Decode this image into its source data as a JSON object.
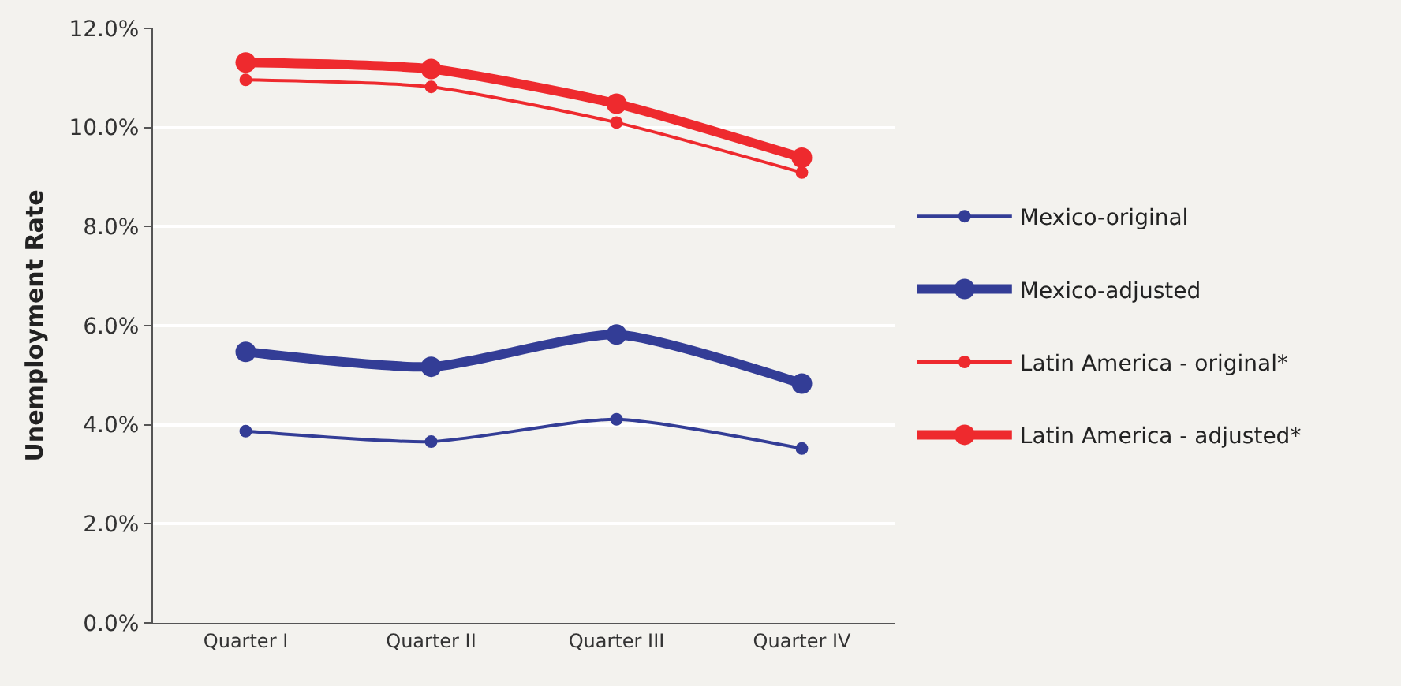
{
  "chart_data": {
    "type": "line",
    "ylabel": "Unemployment Rate",
    "categories": [
      "Quarter I",
      "Quarter II",
      "Quarter III",
      "Quarter IV"
    ],
    "series": [
      {
        "name": "Mexico-original",
        "color": "#333d96",
        "values": [
          3.87,
          3.66,
          4.11,
          3.52
        ]
      },
      {
        "name": "Mexico-adjusted",
        "color": "#333d96",
        "values": [
          5.47,
          5.17,
          5.82,
          4.83
        ]
      },
      {
        "name": "Latin America - original*",
        "color": "#ee2a2e",
        "values": [
          10.96,
          10.82,
          10.1,
          9.09
        ]
      },
      {
        "name": "Latin America - adjusted*",
        "color": "#ee2a2e",
        "values": [
          11.31,
          11.18,
          10.48,
          9.39
        ]
      }
    ],
    "ylim": [
      0,
      12
    ],
    "yticks": [
      {
        "value": 0,
        "label": "0.0%"
      },
      {
        "value": 2,
        "label": "2.0%"
      },
      {
        "value": 4,
        "label": "4.0%"
      },
      {
        "value": 6,
        "label": "6.0%"
      },
      {
        "value": 8,
        "label": "8.0%"
      },
      {
        "value": 10,
        "label": "10.0%"
      },
      {
        "value": 12,
        "label": "12.0%"
      }
    ],
    "grid": "y",
    "legend": "right",
    "marker": "circle",
    "line_style": "solid"
  }
}
